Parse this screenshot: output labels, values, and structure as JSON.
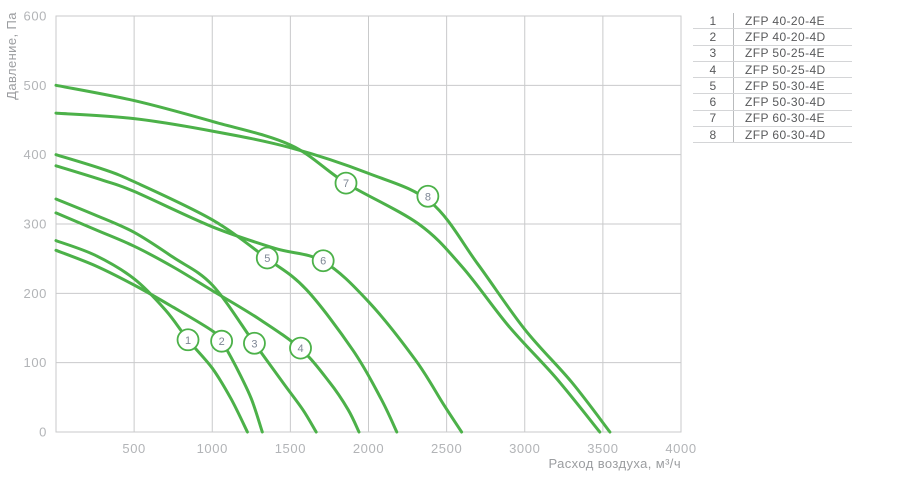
{
  "chart_data": {
    "type": "line",
    "title": "",
    "xlabel": "Расход воздуха, м³/ч",
    "ylabel": "Давление, Па",
    "xlim": [
      0,
      4000
    ],
    "ylim": [
      0,
      600
    ],
    "x_ticks": [
      500,
      1000,
      1500,
      2000,
      2500,
      3000,
      3500,
      4000
    ],
    "y_ticks": [
      0,
      100,
      200,
      300,
      400,
      500,
      600
    ],
    "grid": true,
    "legend_position": "right-table",
    "colors": {
      "curve": "#4cb149",
      "grid": "#c9cacb",
      "tick_text": "#b2b4b7",
      "axis_title_text": "#9b9da0",
      "legend_text": "#58595b",
      "circle_number_text": "#7e8795"
    },
    "series": [
      {
        "num": "1",
        "name": "ZFP 40-20-4E",
        "label_at": [
          845,
          133
        ],
        "points": [
          [
            0,
            276
          ],
          [
            250,
            255
          ],
          [
            500,
            221
          ],
          [
            700,
            176
          ],
          [
            845,
            133
          ],
          [
            1000,
            92
          ],
          [
            1120,
            48
          ],
          [
            1225,
            0
          ]
        ]
      },
      {
        "num": "2",
        "name": "ZFP 40-20-4D",
        "label_at": [
          1060,
          131
        ],
        "points": [
          [
            0,
            262
          ],
          [
            250,
            240
          ],
          [
            500,
            212
          ],
          [
            750,
            180
          ],
          [
            1000,
            146
          ],
          [
            1060,
            131
          ],
          [
            1150,
            95
          ],
          [
            1250,
            48
          ],
          [
            1320,
            0
          ]
        ]
      },
      {
        "num": "3",
        "name": "ZFP 50-25-4E",
        "label_at": [
          1270,
          128
        ],
        "points": [
          [
            0,
            336
          ],
          [
            250,
            313
          ],
          [
            500,
            288
          ],
          [
            750,
            252
          ],
          [
            1000,
            212
          ],
          [
            1270,
            128
          ],
          [
            1450,
            72
          ],
          [
            1580,
            32
          ],
          [
            1665,
            0
          ]
        ]
      },
      {
        "num": "4",
        "name": "ZFP 50-25-4D",
        "label_at": [
          1565,
          121
        ],
        "points": [
          [
            0,
            316
          ],
          [
            250,
            292
          ],
          [
            500,
            268
          ],
          [
            750,
            238
          ],
          [
            1000,
            204
          ],
          [
            1300,
            163
          ],
          [
            1565,
            120
          ],
          [
            1750,
            72
          ],
          [
            1870,
            32
          ],
          [
            1939,
            0
          ]
        ]
      },
      {
        "num": "5",
        "name": "ZFP 50-30-4E",
        "label_at": [
          1352,
          251
        ],
        "points": [
          [
            0,
            400
          ],
          [
            300,
            379
          ],
          [
            500,
            361
          ],
          [
            1000,
            306
          ],
          [
            1352,
            250
          ],
          [
            1600,
            206
          ],
          [
            1900,
            118
          ],
          [
            2080,
            48
          ],
          [
            2181,
            0
          ]
        ]
      },
      {
        "num": "6",
        "name": "ZFP 50-30-4D",
        "label_at": [
          1710,
          247
        ],
        "points": [
          [
            0,
            384
          ],
          [
            300,
            363
          ],
          [
            500,
            347
          ],
          [
            1000,
            296
          ],
          [
            1400,
            265
          ],
          [
            1710,
            246
          ],
          [
            2000,
            188
          ],
          [
            2300,
            104
          ],
          [
            2480,
            40
          ],
          [
            2596,
            0
          ]
        ]
      },
      {
        "num": "7",
        "name": "ZFP 60-30-4E",
        "label_at": [
          1856,
          359
        ],
        "points": [
          [
            0,
            500
          ],
          [
            500,
            478
          ],
          [
            1000,
            448
          ],
          [
            1500,
            414
          ],
          [
            1856,
            359
          ],
          [
            2321,
            300
          ],
          [
            2600,
            238
          ],
          [
            2900,
            152
          ],
          [
            3200,
            78
          ],
          [
            3480,
            0
          ]
        ]
      },
      {
        "num": "8",
        "name": "ZFP 60-30-4D",
        "label_at": [
          2380,
          340
        ],
        "points": [
          [
            0,
            460
          ],
          [
            500,
            452
          ],
          [
            1000,
            434
          ],
          [
            1500,
            410
          ],
          [
            2000,
            373
          ],
          [
            2400,
            331
          ],
          [
            2700,
            242
          ],
          [
            3000,
            148
          ],
          [
            3300,
            72
          ],
          [
            3545,
            0
          ]
        ]
      }
    ]
  },
  "legend": {
    "rows": [
      {
        "num": "1",
        "model": "ZFP 40-20-4E"
      },
      {
        "num": "2",
        "model": "ZFP 40-20-4D"
      },
      {
        "num": "3",
        "model": "ZFP 50-25-4E"
      },
      {
        "num": "4",
        "model": "ZFP 50-25-4D"
      },
      {
        "num": "5",
        "model": "ZFP 50-30-4E"
      },
      {
        "num": "6",
        "model": "ZFP 50-30-4D"
      },
      {
        "num": "7",
        "model": "ZFP 60-30-4E"
      },
      {
        "num": "8",
        "model": "ZFP 60-30-4D"
      }
    ]
  }
}
